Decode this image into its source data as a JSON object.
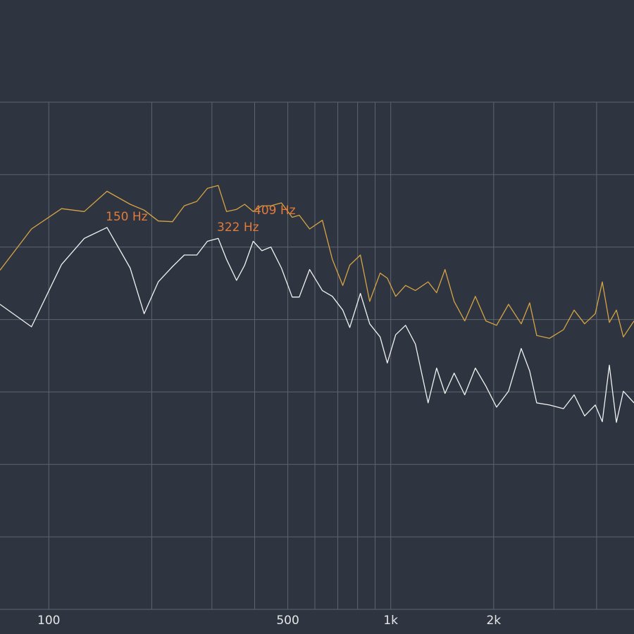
{
  "chart_data": {
    "type": "line",
    "xscale": "log",
    "xlim": [
      72,
      5145
    ],
    "ylim": [
      0,
      7
    ],
    "xticks": [
      100,
      500,
      {
        "value": 1000,
        "label": "1k"
      },
      {
        "value": 2000,
        "label": "2k"
      }
    ],
    "xminor": [
      200,
      300,
      400,
      600,
      700,
      800,
      900,
      3000,
      4000
    ],
    "ygrid": [
      0,
      1,
      2,
      3,
      4,
      5,
      6,
      7
    ],
    "grid": true,
    "annotations": [
      "150 Hz",
      "322 Hz",
      "409 Hz"
    ],
    "annotation_color": "#e27a3a",
    "x": [
      72,
      89,
      109,
      127,
      148,
      173,
      190,
      209,
      230,
      249,
      271,
      291,
      313,
      331,
      354,
      374,
      396,
      420,
      446,
      479,
      515,
      540,
      579,
      631,
      675,
      724,
      759,
      815,
      868,
      931,
      977,
      1034,
      1105,
      1181,
      1286,
      1362,
      1441,
      1533,
      1646,
      1768,
      1898,
      2039,
      2210,
      2407,
      2548,
      2672,
      2911,
      3200,
      3437,
      3690,
      3963,
      4156,
      4358,
      4569,
      4790,
      5145
    ],
    "series": [
      {
        "color": "#d6a444",
        "values": [
          4.68,
          5.25,
          5.53,
          5.49,
          5.77,
          5.59,
          5.51,
          5.36,
          5.35,
          5.57,
          5.63,
          5.81,
          5.85,
          5.49,
          5.52,
          5.59,
          5.49,
          5.57,
          5.57,
          5.61,
          5.41,
          5.44,
          5.25,
          5.37,
          4.83,
          4.47,
          4.75,
          4.89,
          4.25,
          4.64,
          4.57,
          4.32,
          4.47,
          4.4,
          4.52,
          4.37,
          4.69,
          4.25,
          3.98,
          4.32,
          3.98,
          3.92,
          4.21,
          3.94,
          4.23,
          3.78,
          3.74,
          3.86,
          4.13,
          3.94,
          4.08,
          4.52,
          3.96,
          4.13,
          3.76,
          3.98
        ]
      },
      {
        "color": "#f2f2f2",
        "values": [
          4.21,
          3.9,
          4.76,
          5.12,
          5.27,
          4.71,
          4.08,
          4.52,
          4.73,
          4.89,
          4.89,
          5.08,
          5.12,
          4.83,
          4.54,
          4.75,
          5.08,
          4.95,
          5.0,
          4.71,
          4.31,
          4.31,
          4.69,
          4.4,
          4.32,
          4.13,
          3.89,
          4.36,
          3.94,
          3.76,
          3.4,
          3.79,
          3.92,
          3.66,
          2.85,
          3.33,
          2.98,
          3.26,
          2.96,
          3.33,
          3.08,
          2.79,
          3.01,
          3.6,
          3.29,
          2.85,
          2.82,
          2.77,
          2.96,
          2.67,
          2.82,
          2.59,
          3.37,
          2.58,
          3.01,
          2.85
        ]
      }
    ]
  }
}
